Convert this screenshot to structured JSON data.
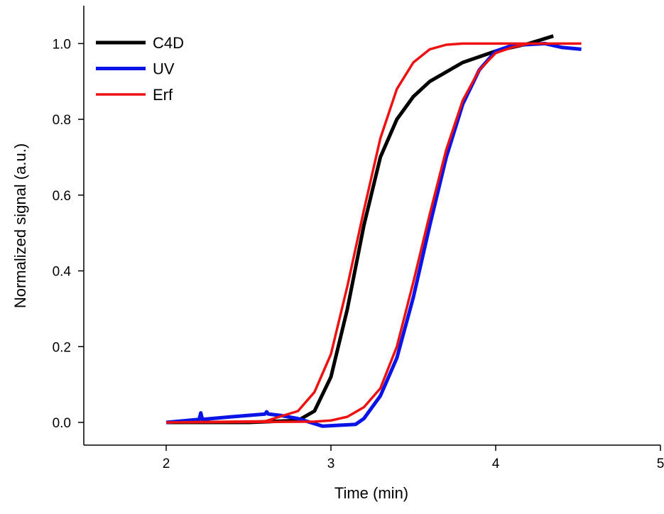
{
  "chart_data": {
    "type": "line",
    "xlabel": "Time (min)",
    "ylabel": "Normalized signal (a.u.)",
    "xlim": [
      1.5,
      5
    ],
    "ylim": [
      -0.06,
      1.1
    ],
    "xticks": [
      2,
      3,
      4,
      5
    ],
    "yticks": [
      {
        "value": 0,
        "label": "0.0"
      },
      0.2,
      0.4,
      0.6,
      0.8,
      {
        "value": 1,
        "label": "1.0"
      }
    ],
    "legend": "upper-left",
    "series": [
      {
        "name": "C4D",
        "color": "#000000",
        "x": [
          2,
          2.5,
          2.8,
          2.9,
          3.0,
          3.1,
          3.2,
          3.3,
          3.4,
          3.5,
          3.6,
          3.8,
          4.0,
          4.2,
          4.35
        ],
        "values": [
          0,
          0,
          0.005,
          0.03,
          0.12,
          0.3,
          0.52,
          0.7,
          0.8,
          0.86,
          0.9,
          0.95,
          0.98,
          1.0,
          1.02
        ]
      },
      {
        "name": "UV",
        "color": "#0a14e6",
        "x": [
          2,
          2.2,
          2.21,
          2.22,
          2.4,
          2.6,
          2.61,
          2.62,
          2.7,
          2.8,
          2.95,
          3.15,
          3.2,
          3.3,
          3.4,
          3.5,
          3.6,
          3.7,
          3.8,
          3.9,
          4.0,
          4.1,
          4.3,
          4.4,
          4.52
        ],
        "values": [
          0,
          0.008,
          0.025,
          0.008,
          0.015,
          0.022,
          0.028,
          0.022,
          0.018,
          0.01,
          -0.01,
          -0.005,
          0.01,
          0.07,
          0.17,
          0.33,
          0.52,
          0.7,
          0.84,
          0.93,
          0.98,
          0.995,
          1.0,
          0.99,
          0.985
        ]
      },
      {
        "name": "Erf",
        "color": "#ee1111",
        "x": [
          2,
          2.6,
          2.8,
          2.9,
          3.0,
          3.1,
          3.2,
          3.3,
          3.4,
          3.5,
          3.6,
          3.7,
          3.8,
          4.5,
          null,
          2,
          2.9,
          3.0,
          3.1,
          3.2,
          3.3,
          3.4,
          3.5,
          3.6,
          3.7,
          3.8,
          3.9,
          4.0,
          4.1,
          4.2,
          4.52
        ],
        "values": [
          0,
          0.003,
          0.03,
          0.08,
          0.18,
          0.36,
          0.56,
          0.75,
          0.88,
          0.95,
          0.985,
          0.997,
          1.0,
          1.0,
          null,
          0,
          0.002,
          0.005,
          0.015,
          0.04,
          0.09,
          0.2,
          0.37,
          0.55,
          0.72,
          0.85,
          0.93,
          0.975,
          0.99,
          1.0,
          1.0
        ]
      }
    ]
  }
}
